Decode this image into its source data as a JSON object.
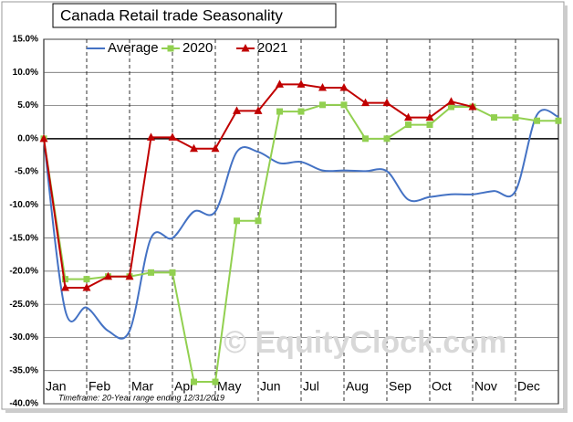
{
  "chart_data": {
    "type": "line",
    "title": "Canada Retail trade Seasonality",
    "note": "Timeframe: 20-Year range ending 12/31/2019",
    "watermark": "© EquityClock.com",
    "categories": [
      "Jan",
      "Feb",
      "Mar",
      "Apr",
      "May",
      "Jun",
      "Jul",
      "Aug",
      "Sep",
      "Oct",
      "Nov",
      "Dec"
    ],
    "xlim": [
      0,
      12
    ],
    "ylim": [
      -40,
      15
    ],
    "yticks": [
      {
        "value": 15,
        "label": "15.0%"
      },
      {
        "value": 10,
        "label": "10.0%"
      },
      {
        "value": 5,
        "label": "5.0%"
      },
      {
        "value": 0,
        "label": "0.0%"
      },
      {
        "value": -5,
        "label": "-5.0%"
      },
      {
        "value": -10,
        "label": "-10.0%"
      },
      {
        "value": -15,
        "label": "-15.0%"
      },
      {
        "value": -20,
        "label": "-20.0%"
      },
      {
        "value": -25,
        "label": "-25.0%"
      },
      {
        "value": -30,
        "label": "-30.0%"
      },
      {
        "value": -35,
        "label": "-35.0%"
      },
      {
        "value": -40,
        "label": "-40.0%"
      }
    ],
    "grid": true,
    "series": [
      {
        "name": "Average",
        "color": "#4472c4",
        "marker": "none",
        "x": [
          0,
          0.5,
          1,
          1.5,
          2,
          2.5,
          3,
          3.5,
          4,
          4.5,
          5,
          5.5,
          6,
          6.5,
          7,
          7.5,
          8,
          8.5,
          9,
          9.5,
          10,
          10.5,
          11,
          11.5,
          12
        ],
        "values": [
          0,
          -25.9,
          -25.5,
          -29,
          -29,
          -15,
          -15,
          -11,
          -11,
          -2,
          -2,
          -3.7,
          -3.5,
          -4.8,
          -4.8,
          -4.9,
          -4.9,
          -9.2,
          -8.8,
          -8.4,
          -8.4,
          -7.9,
          -7.9,
          3.6,
          3.3
        ]
      },
      {
        "name": "2020",
        "color": "#92d050",
        "marker": "square",
        "x": [
          0,
          0.5,
          1,
          1.5,
          2,
          2.5,
          3,
          3.5,
          4,
          4.5,
          5,
          5.5,
          6,
          6.5,
          7,
          7.5,
          8,
          8.5,
          9,
          9.5,
          10,
          10.5,
          11,
          11.5,
          12
        ],
        "values": [
          0,
          -21.2,
          -21.2,
          -20.8,
          -20.8,
          -20.2,
          -20.2,
          -36.7,
          -36.7,
          -12.4,
          -12.4,
          4.1,
          4.1,
          5.1,
          5.1,
          0,
          0,
          2.1,
          2.1,
          4.8,
          4.8,
          3.2,
          3.2,
          2.7,
          2.7
        ]
      },
      {
        "name": "2021",
        "color": "#c00000",
        "marker": "triangle",
        "x": [
          0,
          0.5,
          1,
          1.5,
          2,
          2.5,
          3,
          3.5,
          4,
          4.5,
          5,
          5.5,
          6,
          6.5,
          7,
          7.5,
          8,
          8.5,
          9,
          9.5,
          10
        ],
        "values": [
          0,
          -22.5,
          -22.5,
          -20.8,
          -20.8,
          0.2,
          0.2,
          -1.5,
          -1.5,
          4.2,
          4.2,
          8.2,
          8.2,
          7.7,
          7.7,
          5.4,
          5.4,
          3.2,
          3.2,
          5.6,
          4.8
        ]
      }
    ]
  }
}
